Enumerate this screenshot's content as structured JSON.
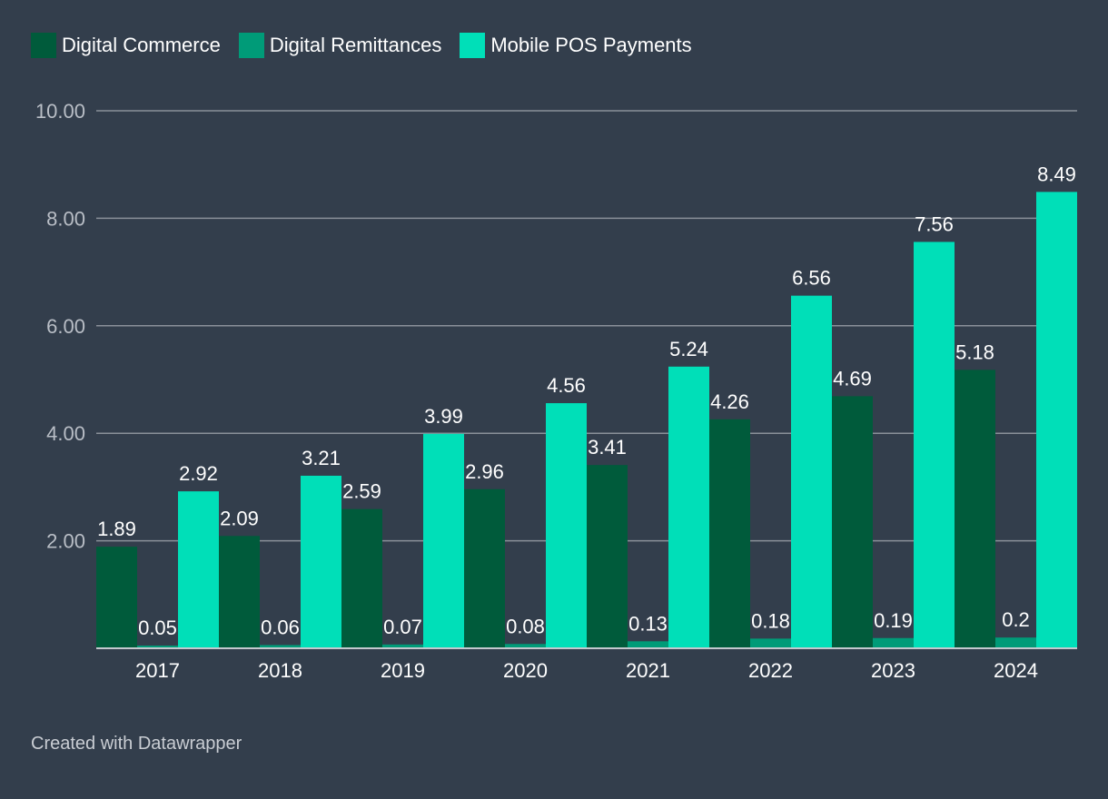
{
  "chart_data": {
    "type": "bar",
    "title": "",
    "xlabel": "",
    "ylabel": "",
    "categories": [
      "2017",
      "2018",
      "2019",
      "2020",
      "2021",
      "2022",
      "2023",
      "2024"
    ],
    "series": [
      {
        "name": "Digital Commerce",
        "color": "#005b3b",
        "values": [
          1.89,
          2.09,
          2.59,
          2.96,
          3.41,
          4.26,
          4.69,
          5.18
        ],
        "labels": [
          "1.89",
          "2.09",
          "2.59",
          "2.96",
          "3.41",
          "4.26",
          "4.69",
          "5.18"
        ]
      },
      {
        "name": "Digital Remittances",
        "color": "#009b78",
        "values": [
          0.05,
          0.06,
          0.07,
          0.08,
          0.13,
          0.18,
          0.19,
          0.2
        ],
        "labels": [
          "0.05",
          "0.06",
          "0.07",
          "0.08",
          "0.13",
          "0.18",
          "0.19",
          "0.2"
        ]
      },
      {
        "name": "Mobile POS Payments",
        "color": "#00dfb8",
        "values": [
          2.92,
          3.21,
          3.99,
          4.56,
          5.24,
          6.56,
          7.56,
          8.49
        ],
        "labels": [
          "2.92",
          "3.21",
          "3.99",
          "4.56",
          "5.24",
          "6.56",
          "7.56",
          "8.49"
        ]
      }
    ],
    "ylim": [
      0,
      10
    ],
    "yticks": [
      2,
      4,
      6,
      8,
      10
    ],
    "ytick_labels": [
      "2.00",
      "4.00",
      "6.00",
      "8.00",
      "10.00"
    ],
    "grid": true,
    "legend_position": "top-left"
  },
  "footer": {
    "credit": "Created with Datawrapper"
  },
  "colors": {
    "background": "#333e4c",
    "gridline": "#8a9099",
    "axis_text": "#b9bec6",
    "label_text": "#ffffff"
  }
}
